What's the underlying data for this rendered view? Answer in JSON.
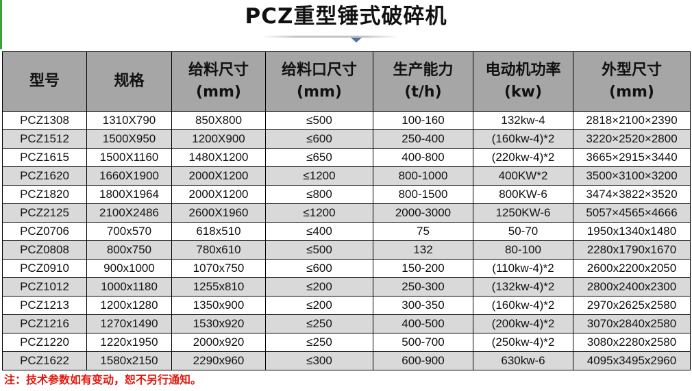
{
  "page": {
    "title": "PCZ重型锤式破碎机",
    "note": "注：技术参数如有变动，恕不另行通知。"
  },
  "colors": {
    "header_bg": "#a6a6a6",
    "row_shade": "#d9d9d9",
    "note_text": "#e3170d",
    "accent_green": "#3aa335",
    "notch_blue": "#4a73a8"
  },
  "table": {
    "headers": [
      {
        "line1": "型号",
        "line2": ""
      },
      {
        "line1": "规格",
        "line2": ""
      },
      {
        "line1": "给料尺寸",
        "line2": "(mm)"
      },
      {
        "line1": "给料口尺寸",
        "line2": "(mm)"
      },
      {
        "line1": "生产能力",
        "line2": "(t/h)"
      },
      {
        "line1": "电动机功率",
        "line2": "(kw)"
      },
      {
        "line1": "外型尺寸",
        "line2": "(mm)"
      }
    ],
    "rows": [
      [
        "PCZ1308",
        "1310X790",
        "850X800",
        "≤500",
        "100-160",
        "132kw-4",
        "2818×2100×2390"
      ],
      [
        "PCZ1512",
        "1500X950",
        "1200X900",
        "≤600",
        "250-400",
        "(160kw-4)*2",
        "3220×2520×2800"
      ],
      [
        "PCZ1615",
        "1500X1160",
        "1480X1200",
        "≤650",
        "400-800",
        "(220kw-4)*2",
        "3665×2915×3440"
      ],
      [
        "PCZ1620",
        "1660X1900",
        "2000X1200",
        "≤1200",
        "800-1000",
        "400KW*2",
        "3500×3100×3200"
      ],
      [
        "PCZ1820",
        "1800X1964",
        "2000X1200",
        "≤800",
        "800-1500",
        "800KW-6",
        "3474×3822×3520"
      ],
      [
        "PCZ2125",
        "2100X2486",
        "2600X1960",
        "≤1200",
        "2000-3000",
        "1250KW-6",
        "5057×4565×4666"
      ],
      [
        "PCZ0706",
        "700x570",
        "618x510",
        "≤400",
        "75",
        "50-70",
        "1950x1340x1480"
      ],
      [
        "PCZ0808",
        "800x750",
        "780x610",
        "≤500",
        "132",
        "80-100",
        "2280x1790x1670"
      ],
      [
        "PCZ0910",
        "900x1000",
        "1070x750",
        "≤600",
        "150-200",
        "(110kw-4)*2",
        "2600x2200x2050"
      ],
      [
        "PCZ1012",
        "1000x1180",
        "1255x810",
        "≤200",
        "250-300",
        "(132kw-4)*2",
        "2800x2400x2300"
      ],
      [
        "PCZ1213",
        "1200x1280",
        "1350x900",
        "≤200",
        "300-350",
        "(160kw-4)*2",
        "2970x2625x2580"
      ],
      [
        "PCZ1216",
        "1270x1490",
        "1530x920",
        "≤250",
        "400-500",
        "(200kw-4)*2",
        "3070x2840x2580"
      ],
      [
        "PCZ1220",
        "1220x1950",
        "2000x920",
        "≤250",
        "500-700",
        "(250kw-4)*2",
        "3080x2280x2580"
      ],
      [
        "PCZ1622",
        "1580x2150",
        "2290x960",
        "≤300",
        "600-900",
        "630kw-6",
        "4095x3495x2960"
      ]
    ]
  }
}
